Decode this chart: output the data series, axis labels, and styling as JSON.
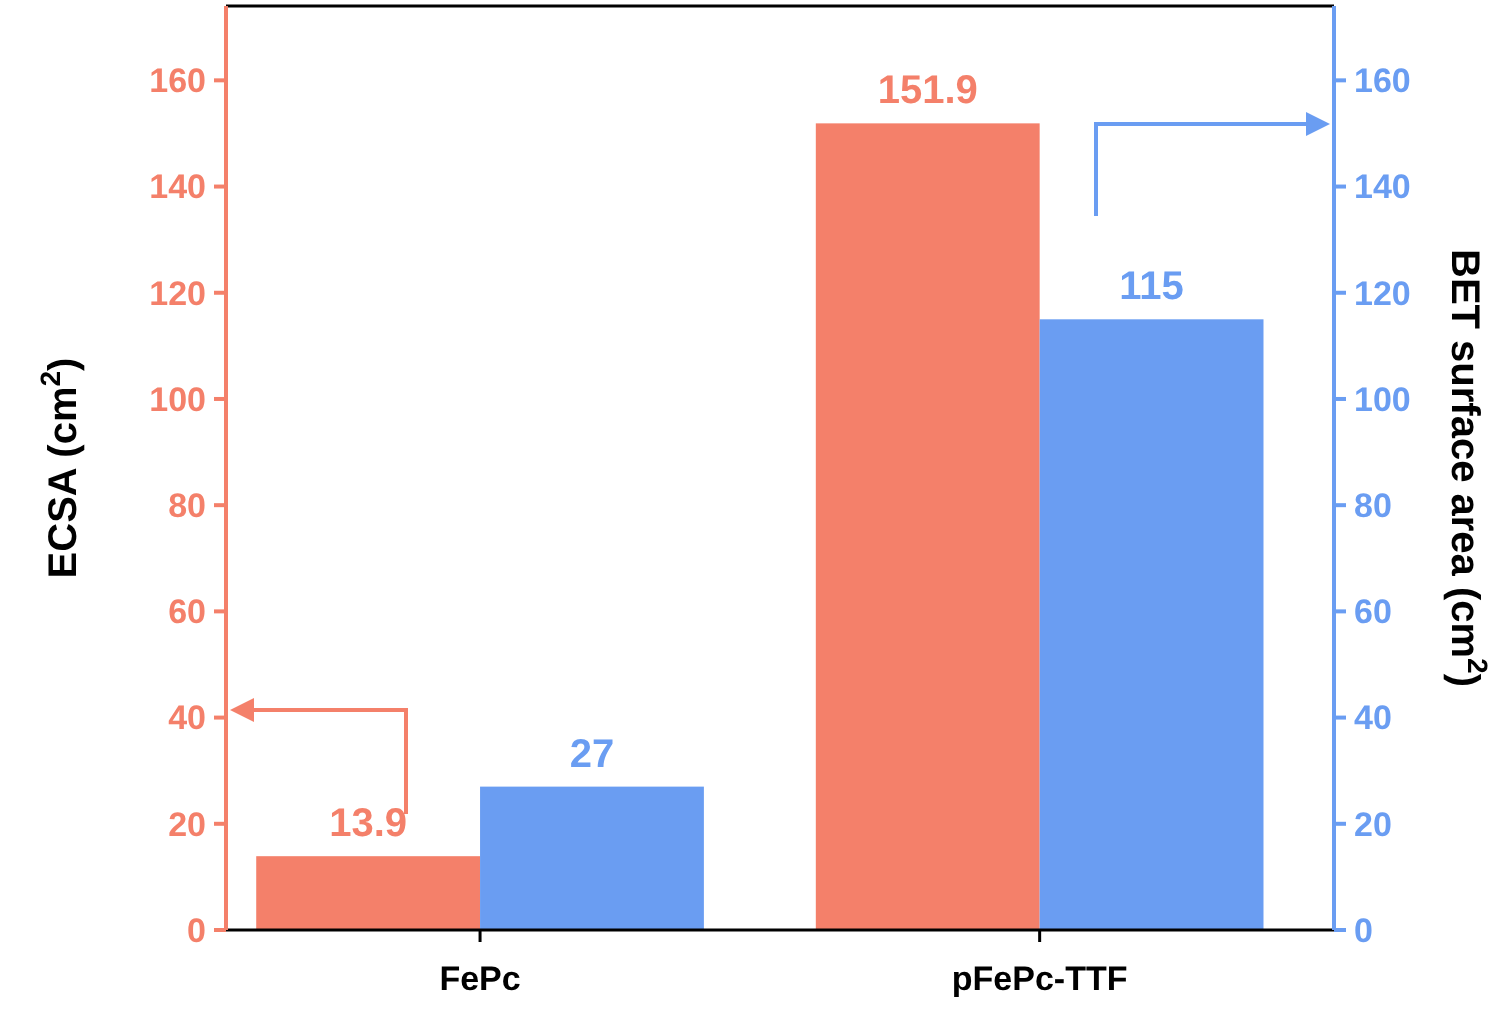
{
  "chart_data": {
    "type": "bar",
    "categories": [
      "FePc",
      "pFePc-TTF"
    ],
    "ylabel": "ECSA (cm$^{2}$)",
    "y2label": "BET surface area (cm$^{2}$)",
    "series": [
      {
        "color": "#f4806a",
        "values": [
          13.9,
          151.9
        ]
      },
      {
        "color": "#6a9df2",
        "values": [
          27,
          115
        ],
        "axis": "y2"
      }
    ],
    "ylim": [
      0,
      174
    ],
    "yticks": [
      0,
      20,
      40,
      60,
      80,
      100,
      120,
      140,
      160
    ],
    "y2lim": [
      0,
      174
    ],
    "y2ticks": [
      0,
      20,
      40,
      60,
      80,
      100,
      120,
      140,
      160
    ],
    "data_labels": true
  }
}
